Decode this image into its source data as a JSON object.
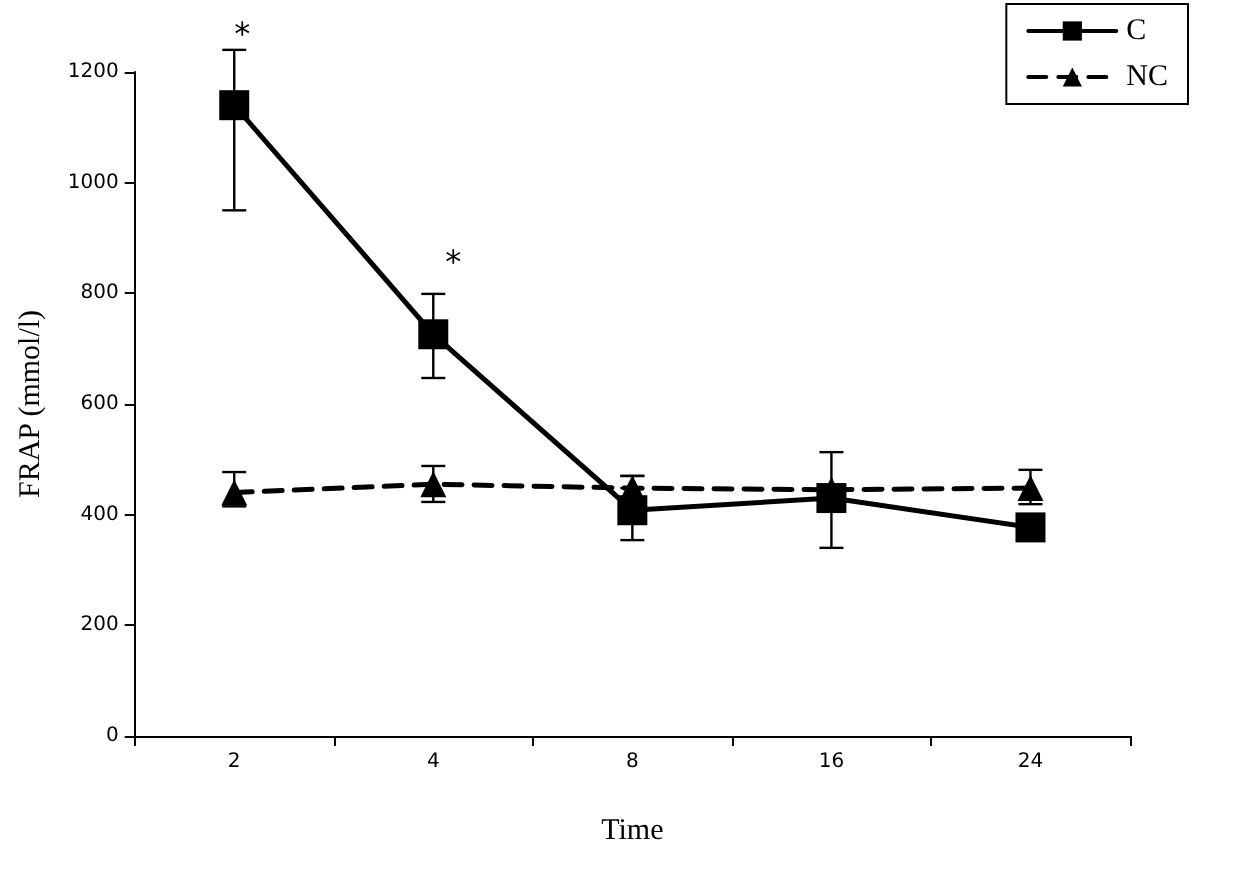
{
  "chart_data": {
    "type": "line",
    "xlabel": "Time",
    "ylabel": "FRAP (mmol/l)",
    "categories": [
      "2",
      "4",
      "8",
      "16",
      "24"
    ],
    "series": [
      {
        "name": "C",
        "color": "#000000",
        "marker": "square",
        "line_style": "solid",
        "values": [
          1140,
          726,
          408,
          430,
          377
        ],
        "errors": [
          [
            950,
            1240
          ],
          [
            647,
            799
          ],
          [
            354,
            470
          ],
          [
            340,
            513
          ],
          null
        ]
      },
      {
        "name": "NC",
        "color": "#000000",
        "marker": "triangle",
        "line_style": "dashed",
        "values": [
          440,
          455,
          448,
          445,
          448
        ],
        "errors": [
          [
            415,
            477
          ],
          [
            423,
            488
          ],
          [
            448,
            470
          ],
          null,
          [
            419,
            481
          ]
        ]
      }
    ],
    "ylim": [
      0,
      1200
    ],
    "yticks": [
      0,
      200,
      400,
      600,
      800,
      1000,
      1200
    ],
    "grid": false,
    "legend": "top right",
    "annotations": [
      "*",
      "*"
    ]
  }
}
